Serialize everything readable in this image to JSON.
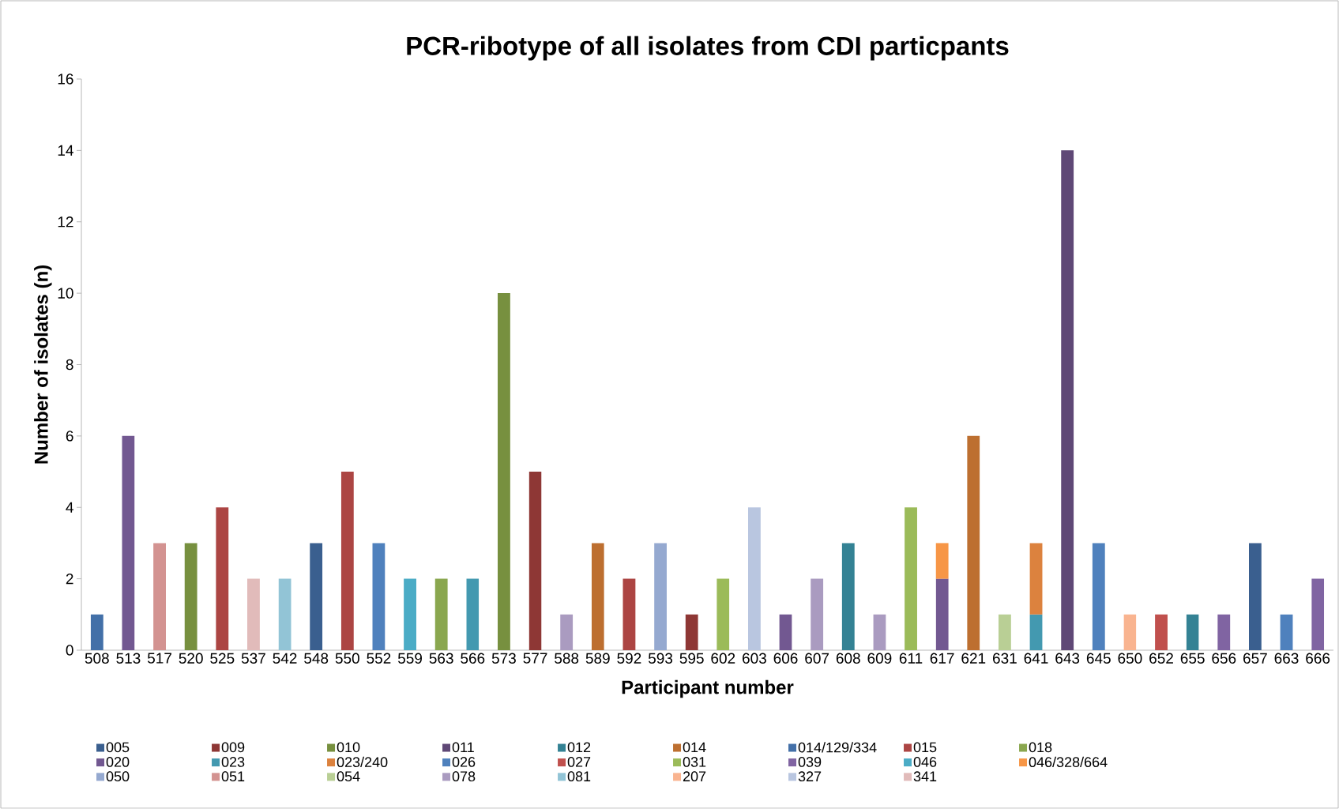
{
  "chart_data": {
    "type": "bar",
    "stacked": true,
    "title": "PCR-ribotype of all isolates from CDI particpants",
    "xlabel": "Participant number",
    "ylabel": "Number of isolates (n)",
    "categories": [
      "508",
      "513",
      "517",
      "520",
      "525",
      "537",
      "542",
      "548",
      "550",
      "552",
      "559",
      "563",
      "566",
      "573",
      "577",
      "588",
      "589",
      "592",
      "593",
      "595",
      "602",
      "603",
      "606",
      "607",
      "608",
      "609",
      "611",
      "617",
      "621",
      "631",
      "641",
      "643",
      "645",
      "650",
      "652",
      "655",
      "656",
      "657",
      "663",
      "666"
    ],
    "ylim": [
      0,
      16
    ],
    "yticks": [
      0,
      2,
      4,
      6,
      8,
      10,
      12,
      14,
      16
    ],
    "grid": false,
    "legend": "bottom",
    "series": [
      {
        "name": "005",
        "color": "#3a5f8f",
        "values": [
          null,
          null,
          null,
          null,
          null,
          null,
          null,
          3,
          null,
          null,
          null,
          null,
          null,
          null,
          null,
          null,
          null,
          null,
          null,
          null,
          null,
          null,
          null,
          null,
          null,
          null,
          null,
          null,
          null,
          null,
          null,
          null,
          null,
          null,
          null,
          null,
          null,
          3,
          null,
          null
        ]
      },
      {
        "name": "009",
        "color": "#8e3735",
        "values": [
          null,
          null,
          null,
          null,
          null,
          null,
          null,
          null,
          null,
          null,
          null,
          null,
          null,
          null,
          5,
          null,
          null,
          null,
          null,
          1,
          null,
          null,
          null,
          null,
          null,
          null,
          null,
          null,
          null,
          null,
          null,
          null,
          null,
          null,
          null,
          null,
          null,
          null,
          null,
          null
        ]
      },
      {
        "name": "010",
        "color": "#77903f",
        "values": [
          null,
          null,
          null,
          3,
          null,
          null,
          null,
          null,
          null,
          null,
          null,
          null,
          null,
          10,
          null,
          null,
          null,
          null,
          null,
          null,
          null,
          null,
          null,
          null,
          null,
          null,
          null,
          null,
          null,
          null,
          null,
          null,
          null,
          null,
          null,
          null,
          null,
          null,
          null,
          null
        ]
      },
      {
        "name": "011",
        "color": "#5f4876",
        "values": [
          null,
          null,
          null,
          null,
          null,
          null,
          null,
          null,
          null,
          null,
          null,
          null,
          null,
          null,
          null,
          null,
          null,
          null,
          null,
          null,
          null,
          null,
          null,
          null,
          null,
          null,
          null,
          null,
          null,
          null,
          null,
          14,
          null,
          null,
          null,
          null,
          null,
          null,
          null,
          null
        ]
      },
      {
        "name": "012",
        "color": "#348294",
        "values": [
          null,
          null,
          null,
          null,
          null,
          null,
          null,
          null,
          null,
          null,
          null,
          null,
          null,
          null,
          null,
          null,
          null,
          null,
          null,
          null,
          null,
          null,
          null,
          null,
          3,
          null,
          null,
          null,
          null,
          null,
          null,
          null,
          null,
          null,
          null,
          1,
          null,
          null,
          null,
          null
        ]
      },
      {
        "name": "014",
        "color": "#bd6f30",
        "values": [
          null,
          null,
          null,
          null,
          null,
          null,
          null,
          null,
          null,
          null,
          null,
          null,
          null,
          null,
          null,
          null,
          3,
          null,
          null,
          null,
          null,
          null,
          null,
          null,
          null,
          null,
          null,
          null,
          6,
          null,
          null,
          null,
          null,
          null,
          null,
          null,
          null,
          null,
          null,
          null
        ]
      },
      {
        "name": "014/129/334",
        "color": "#4370a8",
        "values": [
          1,
          null,
          null,
          null,
          null,
          null,
          null,
          null,
          null,
          null,
          null,
          null,
          null,
          null,
          null,
          null,
          null,
          null,
          null,
          null,
          null,
          null,
          null,
          null,
          null,
          null,
          null,
          null,
          null,
          null,
          null,
          null,
          null,
          null,
          null,
          null,
          null,
          null,
          null,
          null
        ]
      },
      {
        "name": "015",
        "color": "#ac4543",
        "values": [
          null,
          null,
          null,
          null,
          4,
          null,
          null,
          null,
          5,
          null,
          null,
          null,
          null,
          null,
          null,
          null,
          null,
          2,
          null,
          null,
          null,
          null,
          null,
          null,
          null,
          null,
          null,
          null,
          null,
          null,
          null,
          null,
          null,
          null,
          null,
          null,
          null,
          null,
          null,
          null
        ]
      },
      {
        "name": "018",
        "color": "#8aa74f",
        "values": [
          null,
          null,
          null,
          null,
          null,
          null,
          null,
          null,
          null,
          null,
          null,
          2,
          null,
          null,
          null,
          null,
          null,
          null,
          null,
          null,
          null,
          null,
          null,
          null,
          null,
          null,
          null,
          null,
          null,
          null,
          null,
          null,
          null,
          null,
          null,
          null,
          null,
          null,
          null,
          null
        ]
      },
      {
        "name": "020",
        "color": "#725891",
        "values": [
          null,
          6,
          null,
          null,
          null,
          null,
          null,
          null,
          null,
          null,
          null,
          null,
          null,
          null,
          null,
          null,
          null,
          null,
          null,
          null,
          null,
          null,
          1,
          null,
          null,
          null,
          null,
          2,
          null,
          null,
          null,
          null,
          null,
          null,
          null,
          null,
          null,
          null,
          null,
          null
        ]
      },
      {
        "name": "023",
        "color": "#4399b0",
        "values": [
          null,
          null,
          null,
          null,
          null,
          null,
          null,
          null,
          null,
          null,
          null,
          null,
          2,
          null,
          null,
          null,
          null,
          null,
          null,
          null,
          null,
          null,
          null,
          null,
          null,
          null,
          null,
          null,
          null,
          null,
          1,
          null,
          null,
          null,
          null,
          null,
          null,
          null,
          null,
          null
        ]
      },
      {
        "name": "023/240",
        "color": "#dc823e",
        "values": [
          null,
          null,
          null,
          null,
          null,
          null,
          null,
          null,
          null,
          null,
          null,
          null,
          null,
          null,
          null,
          null,
          null,
          null,
          null,
          null,
          null,
          null,
          null,
          null,
          null,
          null,
          null,
          null,
          null,
          null,
          2,
          null,
          null,
          null,
          null,
          null,
          null,
          null,
          null,
          null
        ]
      },
      {
        "name": "026",
        "color": "#4f81bd",
        "values": [
          null,
          null,
          null,
          null,
          null,
          null,
          null,
          null,
          null,
          3,
          null,
          null,
          null,
          null,
          null,
          null,
          null,
          null,
          null,
          null,
          null,
          null,
          null,
          null,
          null,
          null,
          null,
          null,
          null,
          null,
          null,
          null,
          3,
          null,
          null,
          null,
          null,
          null,
          1,
          null
        ]
      },
      {
        "name": "027",
        "color": "#c0504d",
        "values": [
          null,
          null,
          null,
          null,
          null,
          null,
          null,
          null,
          null,
          null,
          null,
          null,
          null,
          null,
          null,
          null,
          null,
          null,
          null,
          null,
          null,
          null,
          null,
          null,
          null,
          null,
          null,
          null,
          null,
          null,
          null,
          null,
          null,
          null,
          1,
          null,
          null,
          null,
          null,
          null
        ]
      },
      {
        "name": "031",
        "color": "#9bbb59",
        "values": [
          null,
          null,
          null,
          null,
          null,
          null,
          null,
          null,
          null,
          null,
          null,
          null,
          null,
          null,
          null,
          null,
          null,
          null,
          null,
          null,
          2,
          null,
          null,
          null,
          null,
          null,
          4,
          null,
          null,
          null,
          null,
          null,
          null,
          null,
          null,
          null,
          null,
          null,
          null,
          null
        ]
      },
      {
        "name": "039",
        "color": "#8064a2",
        "values": [
          null,
          null,
          null,
          null,
          null,
          null,
          null,
          null,
          null,
          null,
          null,
          null,
          null,
          null,
          null,
          null,
          null,
          null,
          null,
          null,
          null,
          null,
          null,
          null,
          null,
          null,
          null,
          null,
          null,
          null,
          null,
          null,
          null,
          null,
          null,
          null,
          1,
          null,
          null,
          2
        ]
      },
      {
        "name": "046",
        "color": "#4bacc6",
        "values": [
          null,
          null,
          null,
          null,
          null,
          null,
          null,
          null,
          null,
          null,
          2,
          null,
          null,
          null,
          null,
          null,
          null,
          null,
          null,
          null,
          null,
          null,
          null,
          null,
          null,
          null,
          null,
          null,
          null,
          null,
          null,
          null,
          null,
          null,
          null,
          null,
          null,
          null,
          null,
          null
        ]
      },
      {
        "name": "046/328/664",
        "color": "#f79646",
        "values": [
          null,
          null,
          null,
          null,
          null,
          null,
          null,
          null,
          null,
          null,
          null,
          null,
          null,
          null,
          null,
          null,
          null,
          null,
          null,
          null,
          null,
          null,
          null,
          null,
          null,
          null,
          null,
          1,
          null,
          null,
          null,
          null,
          null,
          null,
          null,
          null,
          null,
          null,
          null,
          null
        ]
      },
      {
        "name": "050",
        "color": "#95a9d0",
        "values": [
          null,
          null,
          null,
          null,
          null,
          null,
          null,
          null,
          null,
          null,
          null,
          null,
          null,
          null,
          null,
          null,
          null,
          null,
          3,
          null,
          null,
          null,
          null,
          null,
          null,
          null,
          null,
          null,
          null,
          null,
          null,
          null,
          null,
          null,
          null,
          null,
          null,
          null,
          null,
          null
        ]
      },
      {
        "name": "051",
        "color": "#d39391",
        "values": [
          null,
          null,
          3,
          null,
          null,
          null,
          null,
          null,
          null,
          null,
          null,
          null,
          null,
          null,
          null,
          null,
          null,
          null,
          null,
          null,
          null,
          null,
          null,
          null,
          null,
          null,
          null,
          null,
          null,
          null,
          null,
          null,
          null,
          null,
          null,
          null,
          null,
          null,
          null,
          null
        ]
      },
      {
        "name": "054",
        "color": "#b9cf95",
        "values": [
          null,
          null,
          null,
          null,
          null,
          null,
          null,
          null,
          null,
          null,
          null,
          null,
          null,
          null,
          null,
          null,
          null,
          null,
          null,
          null,
          null,
          null,
          null,
          null,
          null,
          null,
          null,
          null,
          null,
          1,
          null,
          null,
          null,
          null,
          null,
          null,
          null,
          null,
          null,
          null
        ]
      },
      {
        "name": "078",
        "color": "#aa9bc0",
        "values": [
          null,
          null,
          null,
          null,
          null,
          null,
          null,
          null,
          null,
          null,
          null,
          null,
          null,
          null,
          null,
          1,
          null,
          null,
          null,
          null,
          null,
          null,
          null,
          2,
          null,
          1,
          null,
          null,
          null,
          null,
          null,
          null,
          null,
          null,
          null,
          null,
          null,
          null,
          null,
          null
        ]
      },
      {
        "name": "081",
        "color": "#92c4d6",
        "values": [
          null,
          null,
          null,
          null,
          null,
          null,
          2,
          null,
          null,
          null,
          null,
          null,
          null,
          null,
          null,
          null,
          null,
          null,
          null,
          null,
          null,
          null,
          null,
          null,
          null,
          null,
          null,
          null,
          null,
          null,
          null,
          null,
          null,
          null,
          null,
          null,
          null,
          null,
          null,
          null
        ]
      },
      {
        "name": "207",
        "color": "#f9b490",
        "values": [
          null,
          null,
          null,
          null,
          null,
          null,
          null,
          null,
          null,
          null,
          null,
          null,
          null,
          null,
          null,
          null,
          null,
          null,
          null,
          null,
          null,
          null,
          null,
          null,
          null,
          null,
          null,
          null,
          null,
          null,
          null,
          null,
          null,
          1,
          null,
          null,
          null,
          null,
          null,
          null
        ]
      },
      {
        "name": "327",
        "color": "#b9c6e0",
        "values": [
          null,
          null,
          null,
          null,
          null,
          null,
          null,
          null,
          null,
          null,
          null,
          null,
          null,
          null,
          null,
          null,
          null,
          null,
          null,
          null,
          null,
          4,
          null,
          null,
          null,
          null,
          null,
          null,
          null,
          null,
          null,
          null,
          null,
          null,
          null,
          null,
          null,
          null,
          null,
          null
        ]
      },
      {
        "name": "341",
        "color": "#e1bbba",
        "values": [
          null,
          null,
          null,
          null,
          null,
          2,
          null,
          null,
          null,
          null,
          null,
          null,
          null,
          null,
          null,
          null,
          null,
          null,
          null,
          null,
          null,
          null,
          null,
          null,
          null,
          null,
          null,
          null,
          null,
          null,
          null,
          null,
          null,
          null,
          null,
          null,
          null,
          null,
          null,
          null
        ]
      }
    ]
  }
}
